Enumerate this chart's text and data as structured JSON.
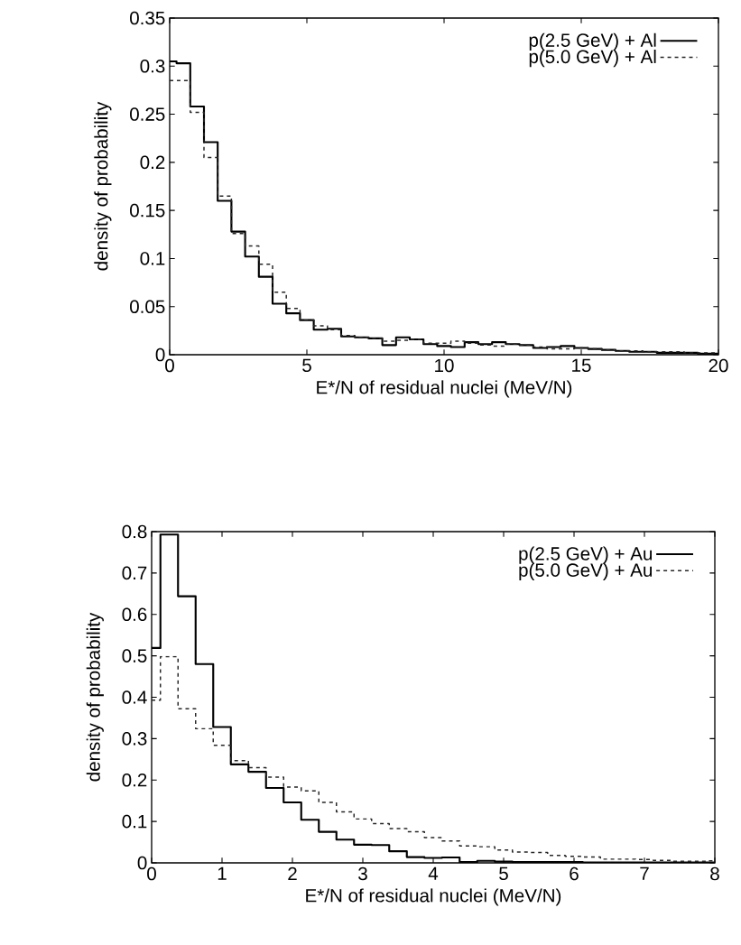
{
  "chart_data": [
    {
      "type": "histogram",
      "xlabel": "E*/N of residual nuclei (MeV/N)",
      "ylabel": "density of probability",
      "bins": [
        0,
        0.25,
        0.75,
        1.25,
        1.75,
        2.25,
        2.75,
        3.25,
        3.75,
        4.25,
        4.75,
        5.25,
        5.75,
        6.25,
        6.75,
        7.25,
        7.75,
        8.25,
        8.75,
        9.25,
        9.75,
        10.25,
        10.75,
        11.25,
        11.75,
        12.25,
        12.75,
        13.25,
        13.75,
        14.25,
        14.75,
        15.25,
        15.75,
        16.25,
        16.75,
        17.25,
        17.75,
        18.25,
        18.75,
        19.25,
        19.75,
        20
      ],
      "series": [
        {
          "name": "p(2.5 GeV) + Al",
          "color": "#000000",
          "line_style": "solid",
          "values": [
            0.305,
            0.303,
            0.258,
            0.221,
            0.16,
            0.128,
            0.102,
            0.081,
            0.053,
            0.043,
            0.036,
            0.026,
            0.027,
            0.019,
            0.018,
            0.017,
            0.01,
            0.018,
            0.016,
            0.011,
            0.009,
            0.008,
            0.013,
            0.011,
            0.013,
            0.011,
            0.01,
            0.007,
            0.008,
            0.009,
            0.007,
            0.006,
            0.005,
            0.004,
            0.003,
            0.003,
            0.002,
            0.002,
            0.002,
            0.001,
            0.001
          ]
        },
        {
          "name": "p(5.0 GeV) + Al",
          "color": "#262626",
          "line_style": "dashed",
          "values": [
            0.285,
            0.285,
            0.252,
            0.205,
            0.165,
            0.126,
            0.113,
            0.094,
            0.065,
            0.048,
            0.036,
            0.03,
            0.026,
            0.02,
            0.018,
            0.017,
            0.014,
            0.015,
            0.016,
            0.012,
            0.012,
            0.014,
            0.012,
            0.01,
            0.009,
            0.011,
            0.01,
            0.008,
            0.006,
            0.006,
            0.007,
            0.006,
            0.005,
            0.004,
            0.004,
            0.003,
            0.003,
            0.003,
            0.002,
            0.002,
            0.002
          ]
        }
      ],
      "xlim": [
        0,
        20
      ],
      "ylim": [
        0,
        0.35
      ],
      "xticks": [
        0,
        5,
        10,
        15,
        20
      ],
      "yticks": [
        0,
        0.05,
        0.1,
        0.15,
        0.2,
        0.25,
        0.3,
        0.35
      ],
      "legend": "top right"
    },
    {
      "type": "histogram",
      "xlabel": "E*/N of residual nuclei (MeV/N)",
      "ylabel": "density of probability",
      "bins": [
        0,
        0.125,
        0.375,
        0.625,
        0.875,
        1.125,
        1.375,
        1.625,
        1.875,
        2.125,
        2.375,
        2.625,
        2.875,
        3.125,
        3.375,
        3.625,
        3.875,
        4.125,
        4.375,
        4.625,
        4.875,
        5.125,
        5.375,
        5.625,
        5.875,
        6.125,
        6.375,
        6.625,
        6.875,
        7.125,
        7.375,
        7.625,
        7.875,
        8
      ],
      "series": [
        {
          "name": "p(2.5 GeV) + Au",
          "color": "#000000",
          "line_style": "solid",
          "values": [
            0.519,
            0.793,
            0.644,
            0.48,
            0.328,
            0.238,
            0.22,
            0.181,
            0.146,
            0.104,
            0.075,
            0.056,
            0.044,
            0.043,
            0.028,
            0.014,
            0.012,
            0.013,
            0.002,
            0.005,
            0.003,
            0.002,
            0.002,
            0.002,
            0.002,
            0.001,
            0.001,
            0.001,
            0.001,
            0.001,
            0.001,
            0.001,
            0.001
          ]
        },
        {
          "name": "p(5.0 GeV) + Au",
          "color": "#262626",
          "line_style": "dashed",
          "values": [
            0.393,
            0.498,
            0.372,
            0.324,
            0.284,
            0.247,
            0.23,
            0.207,
            0.183,
            0.174,
            0.146,
            0.123,
            0.106,
            0.095,
            0.083,
            0.075,
            0.061,
            0.053,
            0.041,
            0.039,
            0.031,
            0.026,
            0.025,
            0.018,
            0.016,
            0.014,
            0.009,
            0.009,
            0.008,
            0.006,
            0.004,
            0.004,
            0.005
          ]
        }
      ],
      "xlim": [
        0,
        8
      ],
      "ylim": [
        0,
        0.8
      ],
      "xticks": [
        0,
        1,
        2,
        3,
        4,
        5,
        6,
        7,
        8
      ],
      "yticks": [
        0,
        0.1,
        0.2,
        0.3,
        0.4,
        0.5,
        0.6,
        0.7,
        0.8
      ],
      "legend": "top right"
    }
  ]
}
